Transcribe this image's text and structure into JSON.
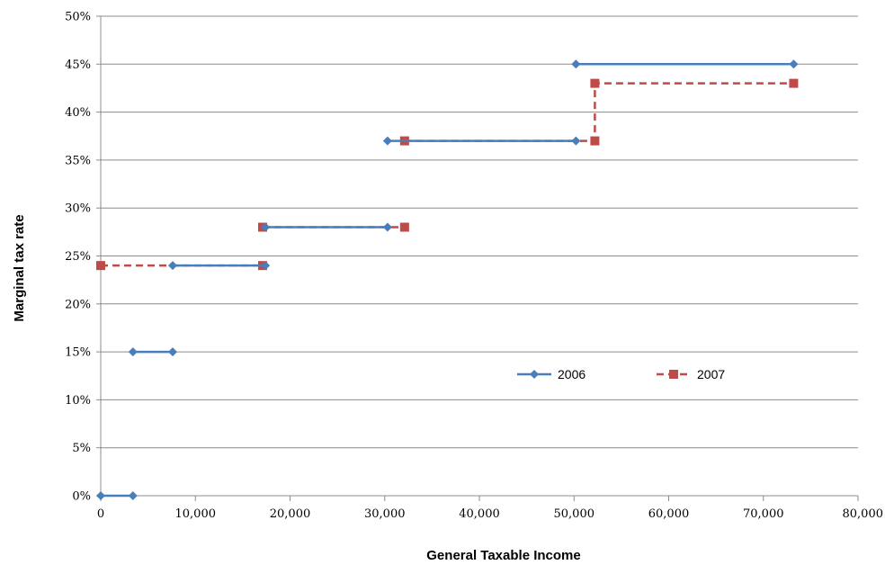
{
  "chart_data": {
    "type": "line",
    "title": "",
    "xlabel": "General Taxable Income",
    "ylabel": "Marginal tax rate",
    "xlim": [
      0,
      80000
    ],
    "ylim": [
      0,
      0.5
    ],
    "x_ticks": [
      "0",
      "10,000",
      "20,000",
      "30,000",
      "40,000",
      "50,000",
      "60,000",
      "70,000",
      "80,000"
    ],
    "y_ticks": [
      "0%",
      "5%",
      "10%",
      "15%",
      "20%",
      "25%",
      "30%",
      "35%",
      "40%",
      "45%",
      "50%"
    ],
    "grid": "horizontal",
    "legend_position": "lower-right, inside plot",
    "series": [
      {
        "name": "2006",
        "color": "#4A7EBB",
        "line_style": "solid",
        "marker": "diamond",
        "segments": [
          [
            [
              0,
              0.0
            ],
            [
              3400,
              0.0
            ]
          ],
          [
            [
              3400,
              0.15
            ],
            [
              7600,
              0.15
            ]
          ],
          [
            [
              7600,
              0.24
            ],
            [
              17400,
              0.24
            ]
          ],
          [
            [
              30300,
              0.28
            ],
            [
              17400,
              0.28
            ]
          ],
          [
            [
              30300,
              0.37
            ],
            [
              50200,
              0.37
            ]
          ],
          [
            [
              50200,
              0.45
            ],
            [
              73200,
              0.45
            ]
          ]
        ]
      },
      {
        "name": "2007",
        "color": "#BE4B48",
        "line_style": "dashed",
        "marker": "square",
        "segments": [
          [
            [
              0,
              0.24
            ],
            [
              17100,
              0.24
            ]
          ],
          [
            [
              17100,
              0.28
            ],
            [
              32100,
              0.28
            ]
          ],
          [
            [
              32100,
              0.37
            ],
            [
              52200,
              0.37
            ],
            [
              52200,
              0.43
            ],
            [
              73200,
              0.43
            ]
          ]
        ]
      }
    ]
  }
}
